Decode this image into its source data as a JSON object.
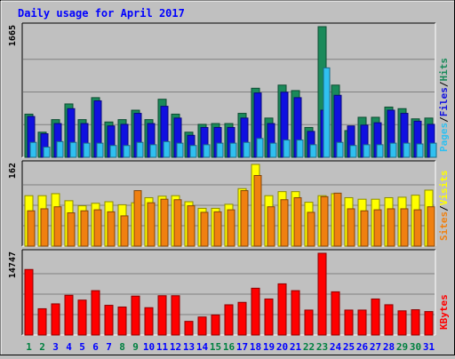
{
  "chart_data": {
    "type": "bar",
    "title": "Daily usage for April 2017",
    "categories": [
      "1",
      "2",
      "3",
      "4",
      "5",
      "6",
      "7",
      "8",
      "9",
      "10",
      "11",
      "12",
      "13",
      "14",
      "15",
      "16",
      "17",
      "18",
      "19",
      "20",
      "21",
      "22",
      "23",
      "24",
      "25",
      "26",
      "27",
      "28",
      "29",
      "30",
      "31"
    ],
    "weekend_days": [
      "1",
      "2",
      "8",
      "9",
      "15",
      "16",
      "22",
      "23",
      "29",
      "30"
    ],
    "panels": [
      {
        "name": "hits-files-pages",
        "ymax_label": "1665",
        "ylim": [
          0,
          1665
        ],
        "legend": [
          "Pages",
          "/",
          "Files",
          "/",
          "Hits"
        ],
        "series": [
          {
            "name": "Hits",
            "color": "#1a8a5a",
            "values": [
              550,
              320,
              480,
              680,
              480,
              760,
              450,
              480,
              600,
              480,
              740,
              550,
              320,
              420,
              430,
              430,
              560,
              880,
              500,
              920,
              850,
              380,
              1665,
              920,
              340,
              510,
              510,
              640,
              620,
              490,
              500
            ]
          },
          {
            "name": "Files",
            "color": "#1010e0",
            "values": [
              520,
              300,
              430,
              620,
              430,
              720,
              400,
              420,
              560,
              430,
              650,
              500,
              280,
              380,
              380,
              380,
              500,
              820,
              430,
              830,
              760,
              330,
              600,
              790,
              400,
              410,
              440,
              600,
              560,
              460,
              420
            ]
          },
          {
            "name": "Pages",
            "color": "#30c0f0",
            "values": [
              190,
              130,
              200,
              190,
              180,
              180,
              150,
              150,
              190,
              160,
              200,
              180,
              150,
              160,
              180,
              180,
              190,
              240,
              180,
              220,
              220,
              160,
              1140,
              190,
              150,
              160,
              160,
              180,
              180,
              170,
              180
            ]
          }
        ]
      },
      {
        "name": "visits-sites",
        "ymax_label": "162",
        "ylim": [
          0,
          162
        ],
        "legend": [
          "Sites",
          "/",
          "Visits"
        ],
        "series": [
          {
            "name": "Visits",
            "color": "#ffff00",
            "values": [
              100,
              100,
              104,
              90,
              80,
              85,
              88,
              82,
              86,
              96,
              99,
              100,
              88,
              75,
              75,
              83,
              114,
              162,
              100,
              108,
              108,
              87,
              100,
              104,
              96,
              93,
              93,
              96,
              97,
              101,
              111
            ]
          },
          {
            "name": "Sites",
            "color": "#f08010",
            "values": [
              70,
              74,
              78,
              66,
              70,
              72,
              68,
              60,
              110,
              86,
              93,
              92,
              80,
              67,
              68,
              72,
              110,
              140,
              78,
              92,
              96,
              67,
              98,
              105,
              74,
              70,
              72,
              74,
              74,
              72,
              78
            ]
          }
        ]
      },
      {
        "name": "kbytes",
        "ymax_label": "14747",
        "ylim": [
          0,
          14747
        ],
        "legend": [
          "KBytes"
        ],
        "series": [
          {
            "name": "KBytes",
            "color": "#ff0000",
            "values": [
              11820,
              4740,
              5620,
              7170,
              6300,
              8000,
              5360,
              5050,
              7020,
              4930,
              7090,
              7090,
              2460,
              3250,
              3620,
              5450,
              5890,
              8440,
              6500,
              9230,
              8000,
              4500,
              14747,
              7790,
              4500,
              4500,
              6500,
              5460,
              4360,
              4560,
              4230
            ]
          }
        ]
      }
    ]
  },
  "colors": {
    "title": "#0000ff",
    "frame_bg": "#c0c0c0",
    "plot_bg": "#c0c0c0",
    "gridline": "#808080",
    "weekday_label": "#0000ff",
    "weekend_label": "#008040"
  }
}
